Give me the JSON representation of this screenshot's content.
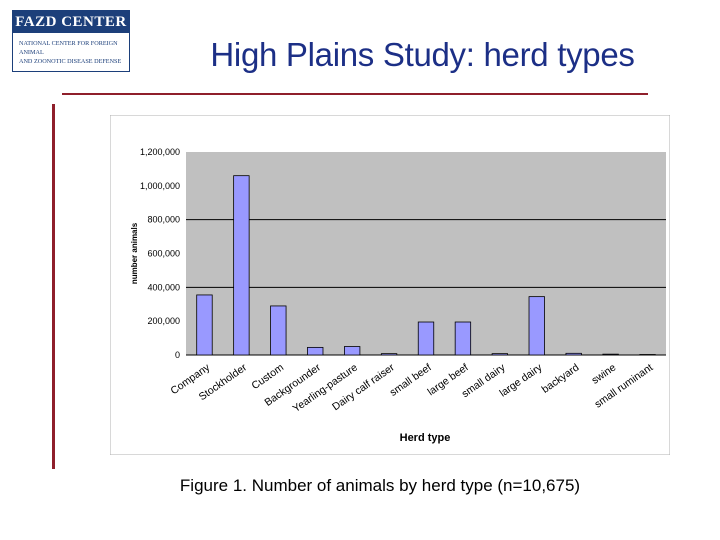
{
  "logo": {
    "name": "FAZD CENTER",
    "line1": "National Center for Foreign Animal",
    "line2": "and Zoonotic Disease Defense"
  },
  "slide": {
    "title": "High Plains Study: herd types",
    "caption": "Figure 1. Number of animals by herd type (n=10,675)"
  },
  "colors": {
    "title": "#1c2f86",
    "rule": "#8f1f2b",
    "bar": "#9999ff",
    "plot_bg": "#c0c0c0"
  },
  "chart_data": {
    "type": "bar",
    "categories": [
      "Company",
      "Stockholder",
      "Custom",
      "Backgrounder",
      "Yearling-pasture",
      "Dairy calf raiser",
      "small beef",
      "large beef",
      "small dairy",
      "large dairy",
      "backyard",
      "swine",
      "small ruminant"
    ],
    "values": [
      355000,
      1060000,
      290000,
      45000,
      50000,
      8000,
      195000,
      195000,
      8000,
      345000,
      10000,
      5000,
      3000
    ],
    "ylim": [
      0,
      1200000
    ],
    "yticks": [
      "0",
      "200,000",
      "400,000",
      "600,000",
      "800,000",
      "1,000,000",
      "1,200,000"
    ],
    "ylabel": "number animals",
    "xlabel": "Herd type",
    "grid": "major y",
    "legend": "none"
  }
}
